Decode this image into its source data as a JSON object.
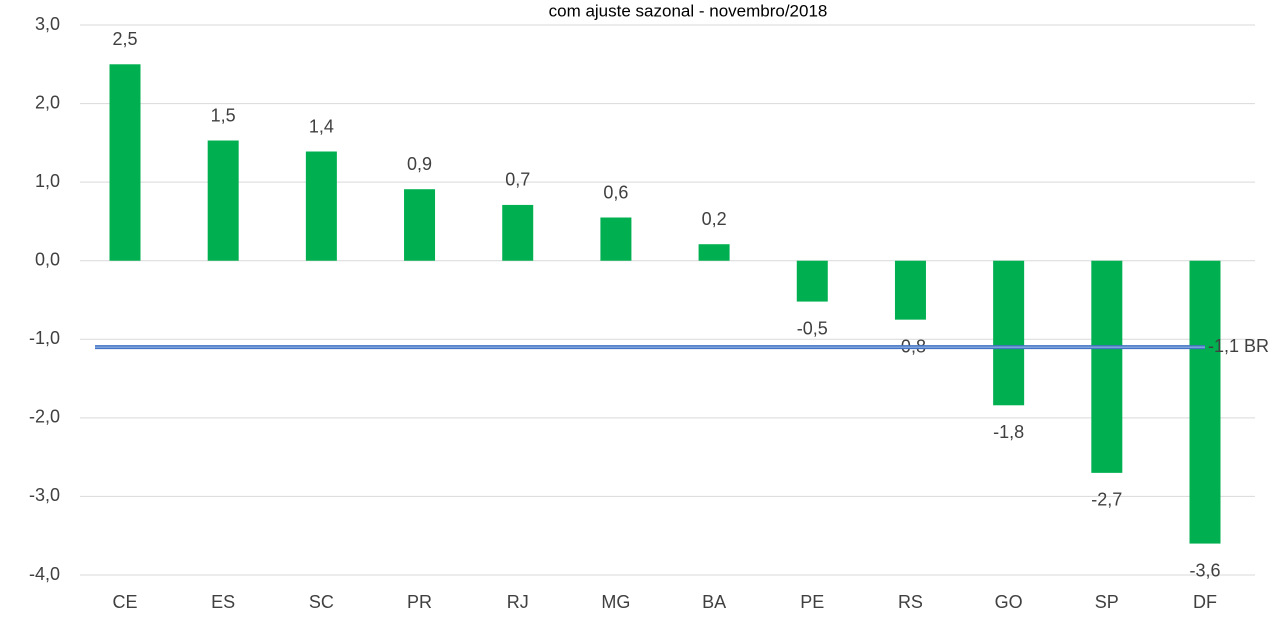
{
  "chart_data": {
    "type": "bar",
    "title": "com ajuste sazonal - novembro/2018",
    "categories": [
      "CE",
      "ES",
      "SC",
      "PR",
      "RJ",
      "MG",
      "BA",
      "PE",
      "RS",
      "GO",
      "SP",
      "DF"
    ],
    "values": [
      2.5,
      1.53,
      1.39,
      0.91,
      0.71,
      0.55,
      0.21,
      -0.52,
      -0.75,
      -1.84,
      -2.7,
      -3.6
    ],
    "value_labels": [
      "2,5",
      "1,5",
      "1,4",
      "0,9",
      "0,7",
      "0,6",
      "0,2",
      "-0,5",
      "-0,8",
      "-1,8",
      "-2,7",
      "-3,6"
    ],
    "color": "#00b050",
    "ylim": [
      -4,
      3
    ],
    "yticks": [
      {
        "value": 3,
        "label": "3,0"
      },
      {
        "value": 2,
        "label": "2,0"
      },
      {
        "value": 1,
        "label": "1,0"
      },
      {
        "value": 0,
        "label": "0,0"
      },
      {
        "value": -1,
        "label": "-1,0"
      },
      {
        "value": -2,
        "label": "-2,0"
      },
      {
        "value": -3,
        "label": "-3,0"
      },
      {
        "value": -4,
        "label": "-4,0"
      }
    ],
    "grid": true,
    "reference_line": {
      "value": -1.1,
      "label": "-1,1 BR",
      "color": "#4472c4"
    }
  }
}
